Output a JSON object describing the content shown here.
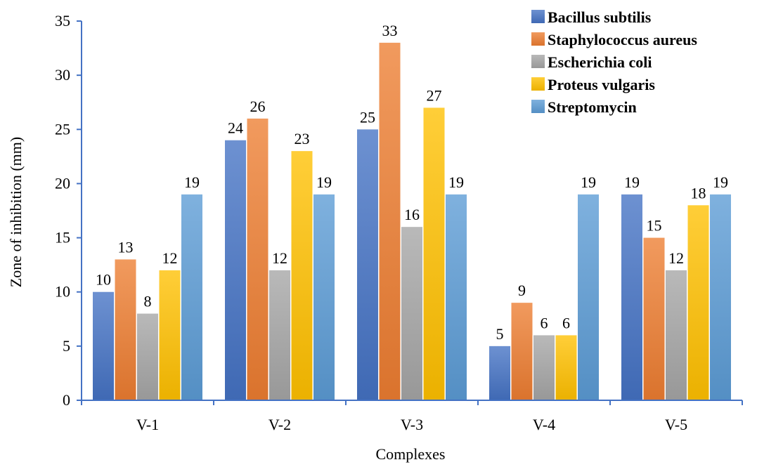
{
  "chart_data": {
    "type": "bar",
    "title": "",
    "xlabel": "Complexes",
    "ylabel": "Zone of inhibition (mm)",
    "categories": [
      "V-1",
      "V-2",
      "V-3",
      "V-4",
      "V-5"
    ],
    "ylim": [
      0,
      35
    ],
    "yticks": [
      0,
      5,
      10,
      15,
      20,
      25,
      30,
      35
    ],
    "grid": false,
    "legend_position": "top-right",
    "series": [
      {
        "name": "Bacillus subtilis",
        "color": "#4472C4",
        "values": [
          10,
          24,
          25,
          5,
          19
        ]
      },
      {
        "name": "Staphylococcus aureus",
        "color": "#ED7D31",
        "values": [
          13,
          26,
          33,
          9,
          15
        ]
      },
      {
        "name": "Escherichia coli",
        "color": "#A5A5A5",
        "values": [
          8,
          12,
          16,
          6,
          12
        ]
      },
      {
        "name": "Proteus vulgaris",
        "color": "#FFC000",
        "values": [
          12,
          23,
          27,
          6,
          18
        ]
      },
      {
        "name": "Streptomycin",
        "color": "#5B9BD5",
        "values": [
          19,
          19,
          19,
          19,
          19
        ]
      }
    ],
    "axis_color": "#4472C4"
  }
}
